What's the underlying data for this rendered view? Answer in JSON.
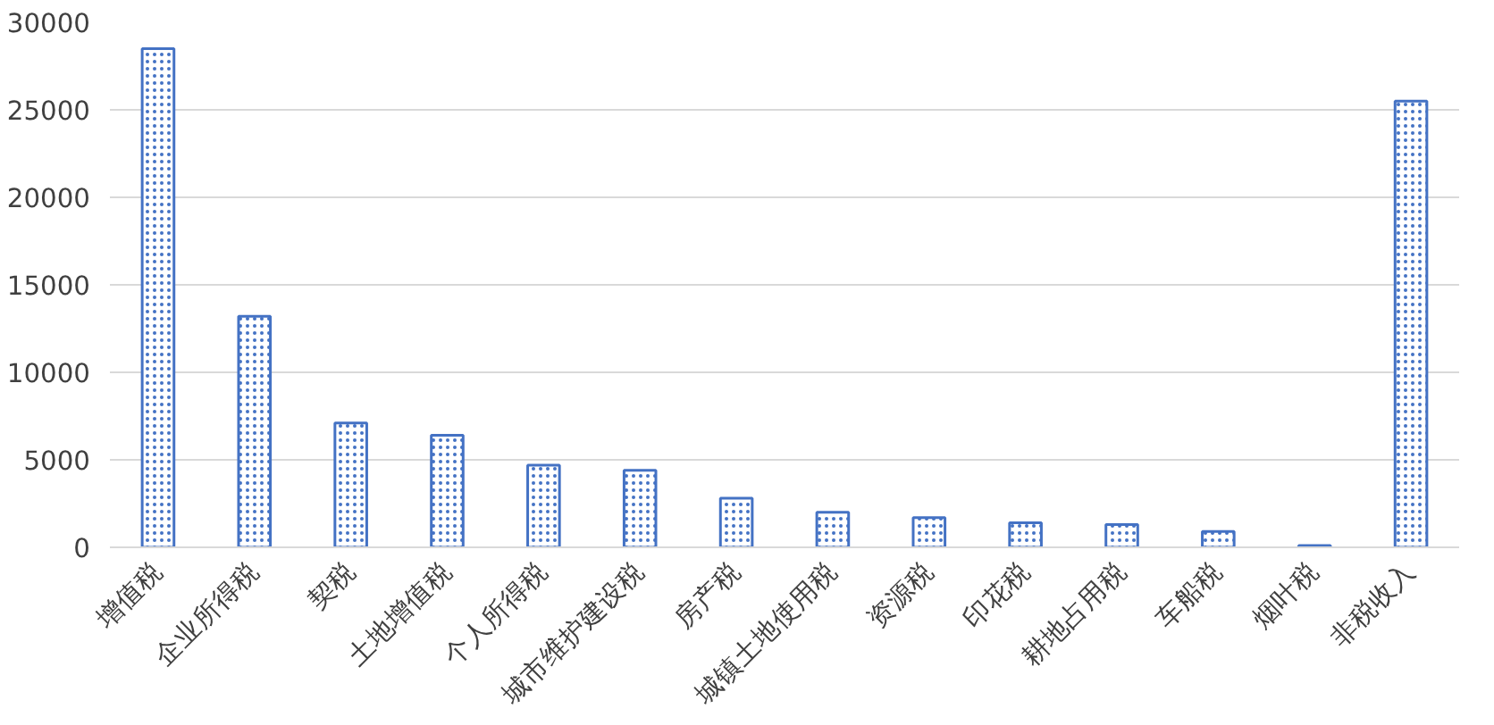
{
  "chart_data": {
    "type": "bar",
    "categories": [
      "增值税",
      "企业所得税",
      "契税",
      "土地增值税",
      "个人所得税",
      "城市维护建设税",
      "房产税",
      "城镇土地使用税",
      "资源税",
      "印花税",
      "耕地占用税",
      "车船税",
      "烟叶税",
      "非税收入"
    ],
    "values": [
      28500,
      13200,
      7100,
      6400,
      4700,
      4400,
      2800,
      2000,
      1700,
      1400,
      1300,
      900,
      100,
      25500
    ],
    "color": "#4472c4",
    "ylim": [
      0,
      30000
    ],
    "yticks": [
      0,
      5000,
      10000,
      15000,
      20000,
      25000,
      30000
    ],
    "grid": "y"
  }
}
